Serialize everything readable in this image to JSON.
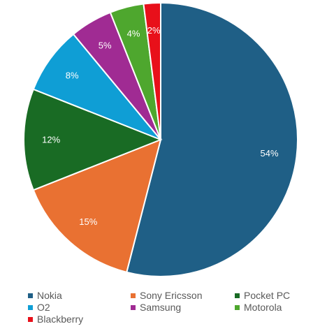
{
  "chart_data": {
    "type": "pie",
    "categories": [
      "Nokia",
      "Sony Ericsson",
      "Pocket PC",
      "O2",
      "Samsung",
      "Motorola",
      "Blackberry"
    ],
    "values": [
      54,
      15,
      12,
      8,
      5,
      4,
      2
    ],
    "labels": [
      "54%",
      "15%",
      "12%",
      "8%",
      "5%",
      "4%",
      "2%"
    ],
    "colors": [
      "#1f5f86",
      "#e97132",
      "#196b24",
      "#0f9ed5",
      "#a02b93",
      "#4ea72e",
      "#e8101a"
    ],
    "legend": "bottom"
  }
}
